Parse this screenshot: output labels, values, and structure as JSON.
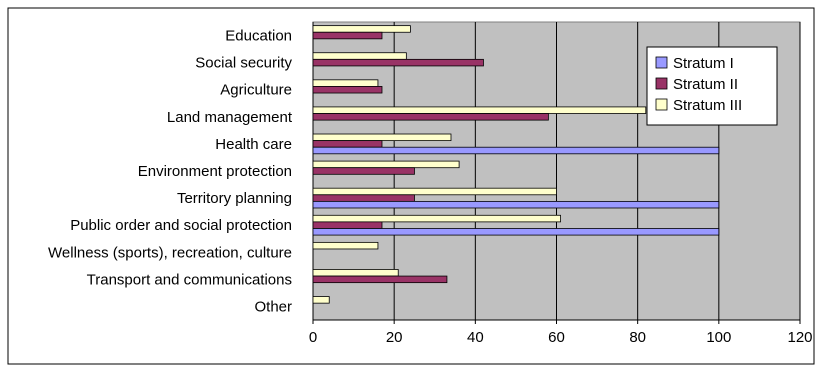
{
  "chart_data": {
    "type": "bar",
    "orientation": "horizontal",
    "categories": [
      "Education",
      "Social security",
      "Agriculture",
      "Land management",
      "Health care",
      "Environment protection",
      "Territory planning",
      "Public order and social protection",
      "Wellness (sports), recreation, culture",
      "Transport and communications",
      "Other"
    ],
    "series": [
      {
        "name": "Stratum I",
        "color": "#9999FF",
        "values": [
          null,
          null,
          null,
          null,
          100,
          null,
          100,
          100,
          null,
          null,
          null
        ]
      },
      {
        "name": "Stratum II",
        "color": "#993366",
        "values": [
          17,
          42,
          17,
          58,
          17,
          25,
          25,
          17,
          null,
          33,
          null
        ]
      },
      {
        "name": "Stratum III",
        "color": "#FFFFCC",
        "values": [
          24,
          23,
          16,
          82,
          34,
          36,
          60,
          61,
          16,
          21,
          4
        ]
      }
    ],
    "xlim": [
      0,
      120
    ],
    "x_ticks": [
      "0",
      "20",
      "40",
      "60",
      "80",
      "100",
      "120"
    ],
    "grid": "vertical",
    "plot_background": "#C0C0C0",
    "legend_position": "top-right"
  }
}
